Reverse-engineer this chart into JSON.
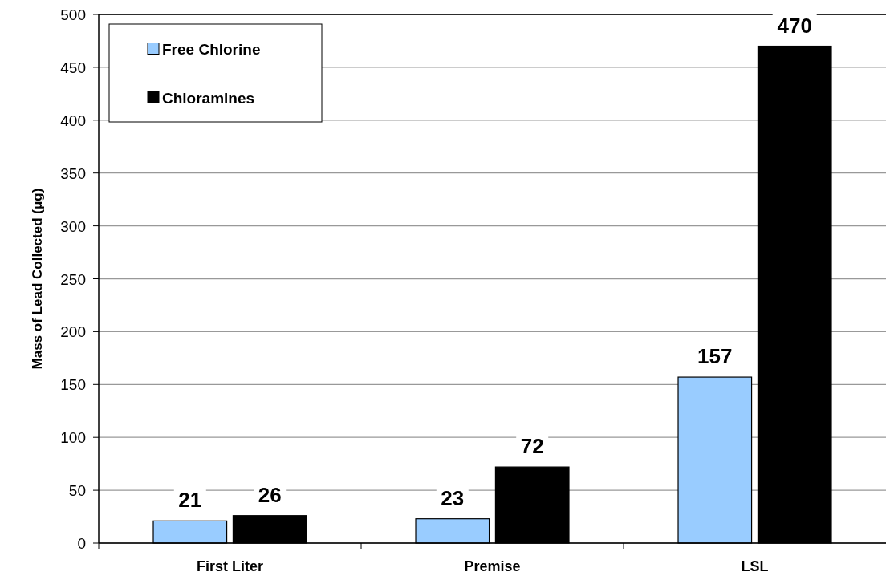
{
  "chart_data": {
    "type": "bar",
    "ylabel": "Mass of Lead Collected (μg)",
    "categories": [
      "First Liter",
      "Premise",
      "LSL"
    ],
    "series": [
      {
        "name": "Free Chlorine",
        "color": "#99ccff",
        "values": [
          21,
          23,
          157
        ]
      },
      {
        "name": "Chloramines",
        "color": "#000000",
        "values": [
          26,
          72,
          470
        ]
      }
    ],
    "ylim": [
      0,
      500
    ],
    "yticks": [
      0,
      50,
      100,
      150,
      200,
      250,
      300,
      350,
      400,
      450,
      500
    ],
    "grid": "y",
    "legend": "top left",
    "data_labels": true
  }
}
